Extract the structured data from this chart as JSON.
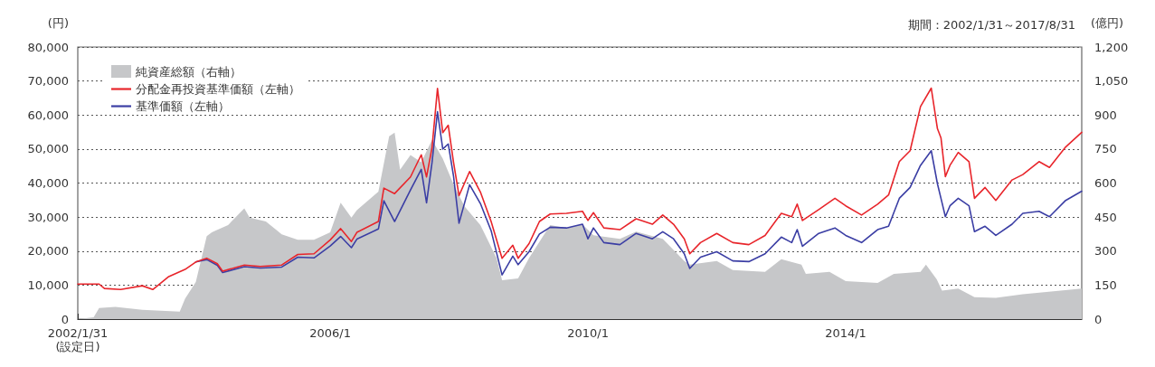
{
  "chart_data": {
    "type": "line",
    "ylabel": "(円)",
    "y2label": "(億円)",
    "annotations": [
      "期間：2002/1/31～2017/8/31"
    ],
    "x": [
      "2002-01-31",
      "2002-06",
      "2002-07",
      "2002-10",
      "2003-02",
      "2003-04",
      "2003-07",
      "2003-10",
      "2003-12",
      "2004-02",
      "2004-04",
      "2004-05",
      "2004-09",
      "2004-12",
      "2005-04",
      "2005-07",
      "2005-10",
      "2006-01",
      "2006-03",
      "2006-05",
      "2006-06",
      "2006-10",
      "2006-11",
      "2007-01",
      "2007-04",
      "2007-06",
      "2007-07",
      "2007-08",
      "2007-09",
      "2007-10",
      "2007-11",
      "2007-12",
      "2008-01",
      "2008-03",
      "2008-05",
      "2008-07",
      "2008-09",
      "2008-11",
      "2008-12",
      "2009-02",
      "2009-04",
      "2009-06",
      "2009-09",
      "2009-12",
      "2010-01",
      "2010-02",
      "2010-04",
      "2010-07",
      "2010-10",
      "2011-01",
      "2011-03",
      "2011-05",
      "2011-07",
      "2011-08",
      "2011-10",
      "2012-01",
      "2012-04",
      "2012-07",
      "2012-10",
      "2013-01",
      "2013-03",
      "2013-04",
      "2013-05",
      "2013-08",
      "2013-11",
      "2014-01",
      "2014-04",
      "2014-07",
      "2014-09",
      "2014-11",
      "2015-01",
      "2015-03",
      "2015-05",
      "2015-06-05",
      "2015-06-25",
      "2015-07-20",
      "2015-08-15",
      "2015-10",
      "2015-12",
      "2016-01",
      "2016-03",
      "2016-05",
      "2016-08",
      "2016-10",
      "2017-01",
      "2017-03",
      "2017-06",
      "2017-08-31"
    ],
    "series": [
      {
        "name": "純資産総額（右軸）",
        "type": "area",
        "axis": "y2",
        "color": "#c6c7c9",
        "x": [
          "2002-01-31",
          "2002-05",
          "2002-06",
          "2002-09",
          "2003-02",
          "2003-09",
          "2003-10",
          "2003-12",
          "2004-02",
          "2004-03",
          "2004-06",
          "2004-09",
          "2004-10",
          "2005-01",
          "2005-04",
          "2005-07",
          "2005-10",
          "2006-01",
          "2006-03",
          "2006-05",
          "2006-06",
          "2006-10",
          "2006-12",
          "2007-01",
          "2007-02",
          "2007-04",
          "2007-06",
          "2007-08",
          "2007-10",
          "2007-12",
          "2008-02",
          "2008-05",
          "2008-08",
          "2008-09",
          "2008-12",
          "2009-02",
          "2009-06",
          "2009-09",
          "2009-12",
          "2010-02",
          "2010-07",
          "2010-10",
          "2011-03",
          "2011-07",
          "2011-08",
          "2012-01",
          "2012-04",
          "2012-10",
          "2013-01",
          "2013-04-25",
          "2013-05-20",
          "2013-10",
          "2014-01",
          "2014-07",
          "2014-10",
          "2015-03",
          "2015-04",
          "2015-06",
          "2015-07",
          "2015-10",
          "2016-01",
          "2016-05",
          "2016-10",
          "2017-08-31"
        ],
        "values": [
          0,
          8,
          49,
          54,
          41,
          33,
          90,
          163,
          366,
          383,
          415,
          488,
          448,
          431,
          374,
          350,
          350,
          383,
          513,
          448,
          480,
          562,
          806,
          822,
          659,
          724,
          692,
          790,
          708,
          594,
          497,
          415,
          269,
          171,
          179,
          269,
          415,
          402,
          418,
          370,
          354,
          386,
          354,
          256,
          240,
          256,
          216,
          208,
          264,
          240,
          199,
          208,
          167,
          159,
          199,
          208,
          240,
          175,
          126,
          135,
          97,
          94,
          110,
          135
        ]
      },
      {
        "name": "分配金再投資基準価額（左軸）",
        "color": "#e8252b",
        "values": [
          10300,
          10300,
          9000,
          8700,
          9800,
          8700,
          12500,
          14600,
          16800,
          17900,
          16300,
          14100,
          15900,
          15500,
          15900,
          19000,
          19200,
          23300,
          26600,
          22800,
          25500,
          28700,
          38500,
          36900,
          41800,
          48300,
          41800,
          50400,
          67800,
          54800,
          57000,
          46100,
          36300,
          43400,
          37400,
          28700,
          17900,
          21700,
          17900,
          22200,
          28700,
          30900,
          31100,
          31700,
          29000,
          31300,
          26800,
          26300,
          29500,
          27900,
          30600,
          27900,
          23600,
          19200,
          22500,
          25200,
          22500,
          21900,
          24600,
          31100,
          30100,
          33800,
          29000,
          32200,
          35500,
          33300,
          30600,
          33800,
          36500,
          46300,
          49500,
          62500,
          67900,
          56000,
          53300,
          41900,
          45200,
          49000,
          46300,
          35500,
          38700,
          34900,
          40900,
          42500,
          46300,
          44600,
          50600,
          54900
        ]
      },
      {
        "name": "基準価額（左軸）",
        "color": "#3b3ea4",
        "values": [
          null,
          null,
          null,
          null,
          null,
          null,
          null,
          null,
          16800,
          17500,
          15800,
          13700,
          15400,
          15000,
          15300,
          18200,
          18000,
          21500,
          24300,
          21000,
          23500,
          26500,
          34800,
          28700,
          38000,
          44000,
          34200,
          46000,
          61000,
          50000,
          51500,
          42000,
          28200,
          39500,
          34000,
          26000,
          13000,
          18500,
          16000,
          19800,
          25000,
          27000,
          26800,
          27900,
          23600,
          26800,
          22500,
          21900,
          25200,
          23600,
          25700,
          23600,
          19200,
          14900,
          18200,
          19800,
          17100,
          16900,
          19200,
          24100,
          22500,
          26300,
          21400,
          25200,
          26800,
          24600,
          22500,
          26300,
          27300,
          35500,
          38700,
          45200,
          49500,
          39800,
          35500,
          30100,
          33300,
          35500,
          33300,
          25700,
          27300,
          24600,
          27900,
          31100,
          31700,
          30100,
          34900,
          37600
        ]
      }
    ],
    "xlim": [
      "2002-01-31",
      "2017-08-31"
    ],
    "xticks": [
      {
        "value": "2002-01-31",
        "label": "2002/1/31\n(設定日)"
      },
      {
        "value": "2006-01",
        "label": "2006/1"
      },
      {
        "value": "2010-01",
        "label": "2010/1"
      },
      {
        "value": "2014-01",
        "label": "2014/1"
      }
    ],
    "ylim": [
      0,
      80000
    ],
    "yticks": [
      0,
      {
        "value": 10000,
        "label": "10,000"
      },
      {
        "value": 20000,
        "label": "20,000"
      },
      {
        "value": 30000,
        "label": "30,000"
      },
      {
        "value": 40000,
        "label": "40,000"
      },
      {
        "value": 50000,
        "label": "50,000"
      },
      {
        "value": 60000,
        "label": "60,000"
      },
      {
        "value": 70000,
        "label": "70,000"
      },
      {
        "value": 80000,
        "label": "80,000"
      }
    ],
    "y2lim": [
      0,
      1200
    ],
    "y2ticks": [
      0,
      150,
      300,
      450,
      600,
      750,
      900,
      {
        "value": 1050,
        "label": "1,050"
      },
      {
        "value": 1200,
        "label": "1,200"
      }
    ],
    "grid": "y",
    "legend": "top left",
    "marker": "none",
    "line_style": "solid"
  }
}
